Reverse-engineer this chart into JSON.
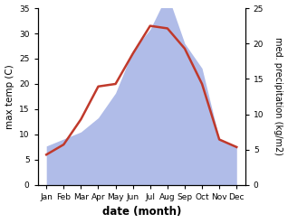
{
  "months": [
    "Jan",
    "Feb",
    "Mar",
    "Apr",
    "May",
    "Jun",
    "Jul",
    "Aug",
    "Sep",
    "Oct",
    "Nov",
    "Dec"
  ],
  "month_positions": [
    1,
    2,
    3,
    4,
    5,
    6,
    7,
    8,
    9,
    10,
    11,
    12
  ],
  "temperature": [
    6.0,
    8.0,
    13.0,
    19.5,
    20.0,
    26.0,
    31.5,
    31.0,
    27.0,
    20.0,
    9.0,
    7.5
  ],
  "precipitation_right": [
    5.5,
    6.5,
    7.5,
    9.5,
    13.0,
    19.0,
    22.0,
    27.0,
    20.0,
    16.5,
    6.5,
    5.5
  ],
  "temp_color": "#c0392b",
  "precip_color": "#b0bce8",
  "left_ylim": [
    0,
    35
  ],
  "right_ylim": [
    0,
    25
  ],
  "left_yticks": [
    0,
    5,
    10,
    15,
    20,
    25,
    30,
    35
  ],
  "right_yticks": [
    0,
    5,
    10,
    15,
    20,
    25
  ],
  "xlabel": "date (month)",
  "ylabel_left": "max temp (C)",
  "ylabel_right": "med. precipitation (kg/m2)",
  "temp_linewidth": 1.8,
  "xlim": [
    0.5,
    12.5
  ],
  "fig_bg": "#ffffff"
}
